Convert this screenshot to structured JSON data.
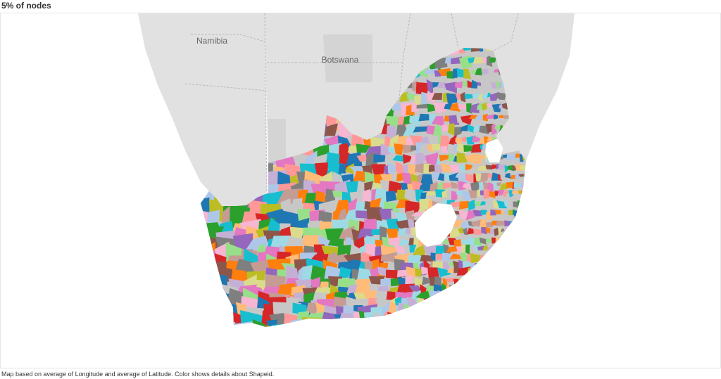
{
  "title": "5% of nodes",
  "caption": "Map based on average of Longitude and average of Latitude.  Color shows details about Shapeid.",
  "map": {
    "country_labels": {
      "namibia": "Namibia",
      "botswana": "Botswana"
    },
    "colors": {
      "land": "#e1e1e1",
      "land_dark": "#d4d4d4",
      "border": "#b8b8b8",
      "lesotho": "#ffffff"
    },
    "shape_palette": [
      "#1f77b4",
      "#aec7e8",
      "#ff7f0e",
      "#ffbb78",
      "#2ca02c",
      "#98df8a",
      "#d62728",
      "#ff9896",
      "#9467bd",
      "#c5b0d5",
      "#8c564b",
      "#c49c94",
      "#e377c2",
      "#f7b6d2",
      "#7f7f7f",
      "#c7c7c7",
      "#bcbd22",
      "#dbdb8d",
      "#17becf",
      "#9edae5"
    ]
  }
}
